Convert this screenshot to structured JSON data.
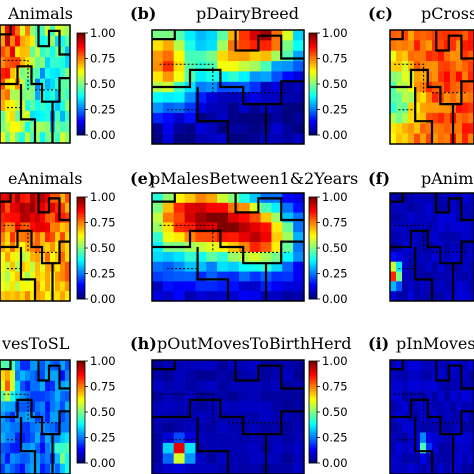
{
  "chart_data": [
    {
      "id": "a",
      "type": "heatmap",
      "letter": "",
      "title": "Animals",
      "colorbar": {
        "ticks": [
          "1.00",
          "0.75",
          "0.50",
          "0.25",
          "0.00"
        ],
        "range": [
          0,
          1
        ]
      },
      "pattern": "mixed_high_left",
      "value_range": [
        0.3,
        0.9
      ]
    },
    {
      "id": "b",
      "type": "heatmap",
      "letter": "(b)",
      "title": "pDairyBreed",
      "colorbar": {
        "ticks": [
          "1.00",
          "0.75",
          "0.50",
          "0.25",
          "0.00"
        ],
        "range": [
          0,
          1
        ]
      },
      "pattern": "dairy_top",
      "value_range": [
        0.0,
        1.0
      ]
    },
    {
      "id": "c",
      "type": "heatmap",
      "letter": "(c)",
      "title": "pCross",
      "colorbar": null,
      "pattern": "mostly_high",
      "value_range": [
        0.4,
        1.0
      ]
    },
    {
      "id": "d",
      "type": "heatmap",
      "letter": "",
      "title": "eAnimals",
      "colorbar": {
        "ticks": [
          "1.00",
          "0.75",
          "0.50",
          "0.25",
          "0.00"
        ],
        "range": [
          0,
          1
        ]
      },
      "pattern": "high_everywhere",
      "value_range": [
        0.5,
        1.0
      ]
    },
    {
      "id": "e",
      "type": "heatmap",
      "letter": "(e)",
      "title": "pMalesBetween1&2Years",
      "colorbar": {
        "ticks": [
          "1.00",
          "0.75",
          "0.50",
          "0.25",
          "0.00"
        ],
        "range": [
          0,
          1
        ]
      },
      "pattern": "males_center",
      "value_range": [
        0.0,
        1.0
      ]
    },
    {
      "id": "f",
      "type": "heatmap",
      "letter": "(f)",
      "title": "pAnimalsL",
      "colorbar": null,
      "pattern": "low_spot_left",
      "value_range": [
        0.0,
        0.9
      ]
    },
    {
      "id": "g",
      "type": "heatmap",
      "letter": "",
      "title": "vesToSL",
      "colorbar": {
        "ticks": [
          "1.00",
          "0.75",
          "0.50",
          "0.25",
          "0.00"
        ],
        "range": [
          0,
          1
        ]
      },
      "pattern": "moves_sl",
      "value_range": [
        0.0,
        1.0
      ]
    },
    {
      "id": "h",
      "type": "heatmap",
      "letter": "(h)",
      "title": "pOutMovesToBirthHerd",
      "colorbar": {
        "ticks": [
          "1.00",
          "0.75",
          "0.50",
          "0.25",
          "0.00"
        ],
        "range": [
          0,
          1
        ]
      },
      "pattern": "low_spot_bottom",
      "value_range": [
        0.0,
        1.0
      ]
    },
    {
      "id": "i",
      "type": "heatmap",
      "letter": "(i)",
      "title": "pInMovesT",
      "colorbar": null,
      "pattern": "low_spot_mid",
      "value_range": [
        0.0,
        0.6
      ]
    }
  ]
}
